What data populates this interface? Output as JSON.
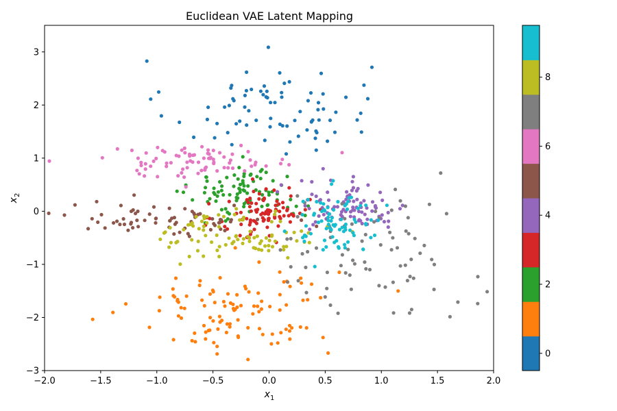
{
  "chart_data": {
    "type": "scatter",
    "title": "Euclidean VAE Latent Mapping",
    "xlabel": "x",
    "xlabel_sub": "1",
    "ylabel": "x",
    "ylabel_sub": "2",
    "xlim": [
      -2.0,
      2.0
    ],
    "ylim": [
      -3.0,
      3.5
    ],
    "x_ticks": [
      "−2.0",
      "−1.5",
      "−1.0",
      "−0.5",
      "0.0",
      "0.5",
      "1.0",
      "1.5",
      "2.0"
    ],
    "x_tick_values": [
      -2.0,
      -1.5,
      -1.0,
      -0.5,
      0.0,
      0.5,
      1.0,
      1.5,
      2.0
    ],
    "y_ticks": [
      "−3",
      "−2",
      "−1",
      "0",
      "1",
      "2",
      "3"
    ],
    "y_tick_values": [
      -3,
      -2,
      -1,
      0,
      1,
      2,
      3
    ],
    "grid": false,
    "colormap": "tab10",
    "colorbar": {
      "range": [
        -0.5,
        9.5
      ],
      "tick_labels": [
        "0",
        "2",
        "4",
        "6",
        "8"
      ],
      "tick_values": [
        0,
        2,
        4,
        6,
        8
      ],
      "colors": [
        "#1f77b4",
        "#ff7f0e",
        "#2ca02c",
        "#d62728",
        "#9467bd",
        "#8c564b",
        "#e377c2",
        "#7f7f7f",
        "#bcbd22",
        "#17becf"
      ]
    },
    "clusters": [
      {
        "label": 0,
        "center": [
          0.0,
          1.95
        ],
        "spread": [
          0.45,
          0.45
        ],
        "count": 80
      },
      {
        "label": 1,
        "center": [
          -0.3,
          -1.85
        ],
        "spread": [
          0.45,
          0.45
        ],
        "count": 110
      },
      {
        "label": 2,
        "center": [
          -0.2,
          0.35
        ],
        "spread": [
          0.25,
          0.25
        ],
        "count": 90
      },
      {
        "label": 3,
        "center": [
          -0.05,
          -0.05
        ],
        "spread": [
          0.2,
          0.25
        ],
        "count": 90
      },
      {
        "label": 4,
        "center": [
          0.75,
          0.1
        ],
        "spread": [
          0.25,
          0.25
        ],
        "count": 90
      },
      {
        "label": 5,
        "center": [
          -0.9,
          -0.15
        ],
        "spread": [
          0.45,
          0.15
        ],
        "count": 70
      },
      {
        "label": 6,
        "center": [
          -0.65,
          0.95
        ],
        "spread": [
          0.45,
          0.15
        ],
        "count": 80
      },
      {
        "label": 7,
        "center": [
          0.9,
          -0.8
        ],
        "spread": [
          0.45,
          0.6
        ],
        "count": 80
      },
      {
        "label": 8,
        "center": [
          -0.25,
          -0.45
        ],
        "spread": [
          0.35,
          0.22
        ],
        "count": 90
      },
      {
        "label": 9,
        "center": [
          0.6,
          -0.2
        ],
        "spread": [
          0.2,
          0.3
        ],
        "count": 80
      }
    ]
  }
}
